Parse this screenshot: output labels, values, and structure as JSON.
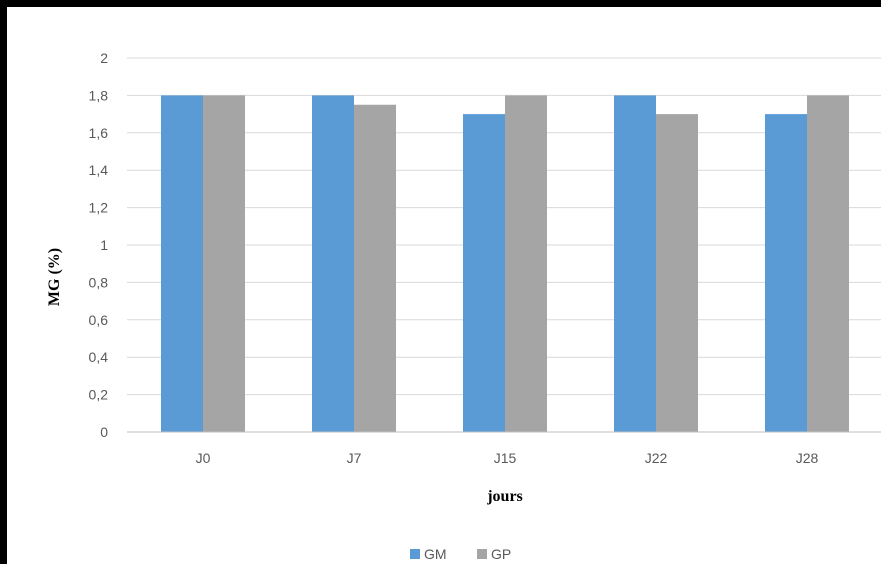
{
  "chart_data": {
    "type": "bar",
    "categories": [
      "J0",
      "J7",
      "J15",
      "J22",
      "J28"
    ],
    "series": [
      {
        "name": "GM",
        "color": "#5B9BD5",
        "values": [
          1.8,
          1.8,
          1.7,
          1.8,
          1.7
        ]
      },
      {
        "name": "GP",
        "color": "#A5A5A5",
        "values": [
          1.8,
          1.75,
          1.8,
          1.7,
          1.8
        ]
      }
    ],
    "title": "",
    "xlabel": "jours",
    "ylabel": "MG (%)",
    "ylim": [
      0,
      2
    ],
    "yticks": [
      0,
      0.2,
      0.4,
      0.6,
      0.8,
      1,
      1.2,
      1.4,
      1.6,
      1.8,
      2
    ],
    "ytick_labels": [
      "0",
      "0,2",
      "0,4",
      "0,6",
      "0,8",
      "1",
      "1,2",
      "1,4",
      "1,6",
      "1,8",
      "2"
    ],
    "grid": "horizontal",
    "legend": "bottom"
  }
}
